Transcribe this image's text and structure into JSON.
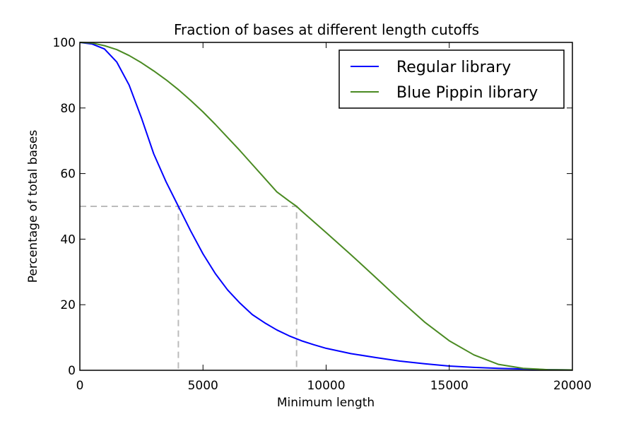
{
  "chart_data": {
    "type": "line",
    "title": "Fraction of bases at different length cutoffs",
    "xlabel": "Minimum length",
    "ylabel": "Percentage of total bases",
    "xlim": [
      0,
      20000
    ],
    "ylim": [
      0,
      100
    ],
    "xticks": [
      0,
      5000,
      10000,
      15000,
      20000
    ],
    "yticks": [
      0,
      20,
      40,
      60,
      80,
      100
    ],
    "grid": false,
    "legend_position": "top-right",
    "series": [
      {
        "name": "Regular library",
        "color": "#0000ff",
        "x": [
          0,
          500,
          1000,
          1500,
          2000,
          2500,
          3000,
          3500,
          4000,
          4500,
          5000,
          5500,
          6000,
          6500,
          7000,
          7500,
          8000,
          8500,
          9000,
          9500,
          10000,
          11000,
          12000,
          13000,
          14000,
          15000,
          16000,
          17000,
          18000,
          19000,
          20000
        ],
        "y": [
          100,
          99.5,
          98,
          94,
          87,
          77,
          66,
          57.5,
          50,
          42.5,
          35.5,
          29.5,
          24.5,
          20.5,
          17,
          14.5,
          12.3,
          10.5,
          9,
          7.8,
          6.7,
          5.1,
          3.9,
          2.8,
          2.0,
          1.3,
          0.9,
          0.6,
          0.4,
          0.2,
          0.1
        ]
      },
      {
        "name": "Blue Pippin library",
        "color": "#4a8a22",
        "x": [
          0,
          500,
          1000,
          1500,
          2000,
          2500,
          3000,
          3500,
          4000,
          4500,
          5000,
          5500,
          6000,
          6500,
          7000,
          7500,
          8000,
          8500,
          8800,
          9000,
          10000,
          11000,
          12000,
          13000,
          14000,
          15000,
          16000,
          17000,
          18000,
          19000,
          20000
        ],
        "y": [
          100,
          99.8,
          99,
          97.8,
          96,
          93.8,
          91.3,
          88.6,
          85.6,
          82.3,
          78.8,
          75,
          71,
          67,
          62.8,
          58.6,
          54.4,
          51.6,
          50,
          48.6,
          42,
          35.3,
          28.4,
          21.4,
          14.7,
          9,
          4.7,
          1.8,
          0.6,
          0.2,
          0.1
        ]
      }
    ],
    "reference_lines": [
      {
        "x": 4000,
        "y": 50,
        "color": "#bbbbbb",
        "style": "dashed"
      },
      {
        "x": 8800,
        "y": 50,
        "color": "#bbbbbb",
        "style": "dashed"
      }
    ]
  }
}
